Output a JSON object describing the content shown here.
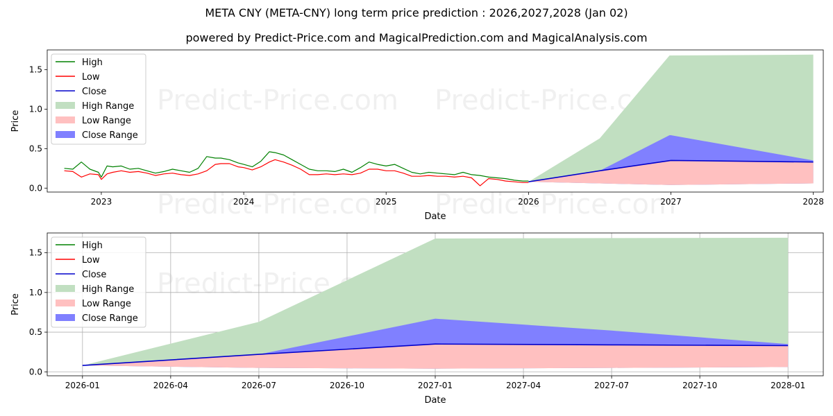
{
  "header": {
    "title": "META CNY (META-CNY) long term price prediction : 2026,2027,2028 (Jan 02)",
    "subtitle": "powered by Predict-Price.com and MagicalPrediction.com and MagicalAnalysis.com"
  },
  "watermark": "Predict-Price.com",
  "colors": {
    "high": "#008000",
    "low": "#ff0000",
    "close": "#0000cc",
    "high_range": "#c1dfc1",
    "low_range": "#ffc0c0",
    "close_range": "#8080ff"
  },
  "chart_data": [
    {
      "type": "line",
      "id": "overview",
      "xlabel": "Date",
      "ylabel": "Price",
      "xlim": [
        2022.62,
        2028.07
      ],
      "ylim": [
        -0.05,
        1.75
      ],
      "x_ticks": [
        2023,
        2024,
        2025,
        2026,
        2027,
        2028
      ],
      "x_tick_labels": [
        "2023",
        "2024",
        "2025",
        "2026",
        "2027",
        "2028"
      ],
      "y_ticks": [
        0.0,
        0.5,
        1.0,
        1.5
      ],
      "y_tick_labels": [
        "0.0",
        "0.5",
        "1.0",
        "1.5"
      ],
      "grid": false,
      "legend_position": "top-left",
      "legend": [
        "High",
        "Low",
        "Close",
        "High Range",
        "Low Range",
        "Close Range"
      ],
      "history_x": [
        2022.74,
        2022.8,
        2022.86,
        2022.92,
        2022.98,
        2023.0,
        2023.04,
        2023.08,
        2023.14,
        2023.2,
        2023.26,
        2023.32,
        2023.38,
        2023.44,
        2023.5,
        2023.56,
        2023.62,
        2023.68,
        2023.74,
        2023.8,
        2023.84,
        2023.9,
        2023.96,
        2024.0,
        2024.06,
        2024.12,
        2024.18,
        2024.22,
        2024.28,
        2024.34,
        2024.4,
        2024.46,
        2024.52,
        2024.58,
        2024.64,
        2024.7,
        2024.76,
        2024.82,
        2024.88,
        2024.94,
        2025.0,
        2025.06,
        2025.12,
        2025.18,
        2025.24,
        2025.3,
        2025.36,
        2025.42,
        2025.48,
        2025.54,
        2025.6,
        2025.66,
        2025.72,
        2025.78,
        2025.84,
        2025.9,
        2025.96,
        2026.0
      ],
      "history_high": [
        0.25,
        0.24,
        0.33,
        0.24,
        0.2,
        0.14,
        0.28,
        0.27,
        0.28,
        0.24,
        0.25,
        0.22,
        0.19,
        0.21,
        0.24,
        0.22,
        0.2,
        0.25,
        0.4,
        0.38,
        0.38,
        0.36,
        0.32,
        0.3,
        0.27,
        0.34,
        0.46,
        0.45,
        0.42,
        0.36,
        0.3,
        0.24,
        0.22,
        0.22,
        0.21,
        0.24,
        0.2,
        0.26,
        0.33,
        0.3,
        0.28,
        0.3,
        0.25,
        0.2,
        0.18,
        0.2,
        0.19,
        0.18,
        0.17,
        0.2,
        0.17,
        0.16,
        0.14,
        0.13,
        0.12,
        0.1,
        0.09,
        0.09
      ],
      "history_low": [
        0.22,
        0.21,
        0.14,
        0.18,
        0.17,
        0.11,
        0.18,
        0.2,
        0.22,
        0.2,
        0.21,
        0.19,
        0.16,
        0.18,
        0.19,
        0.17,
        0.16,
        0.18,
        0.22,
        0.3,
        0.31,
        0.31,
        0.27,
        0.26,
        0.23,
        0.27,
        0.33,
        0.36,
        0.33,
        0.29,
        0.24,
        0.17,
        0.17,
        0.18,
        0.17,
        0.18,
        0.17,
        0.19,
        0.24,
        0.24,
        0.22,
        0.22,
        0.19,
        0.15,
        0.15,
        0.16,
        0.15,
        0.15,
        0.14,
        0.15,
        0.13,
        0.03,
        0.12,
        0.11,
        0.09,
        0.08,
        0.07,
        0.07
      ],
      "history_close": [
        0.23,
        0.22,
        0.2,
        0.2,
        0.18,
        0.12,
        0.2,
        0.22,
        0.24,
        0.22,
        0.22,
        0.2,
        0.17,
        0.19,
        0.21,
        0.19,
        0.17,
        0.2,
        0.28,
        0.33,
        0.34,
        0.33,
        0.29,
        0.28,
        0.25,
        0.3,
        0.4,
        0.4,
        0.36,
        0.32,
        0.27,
        0.2,
        0.19,
        0.2,
        0.19,
        0.2,
        0.18,
        0.22,
        0.28,
        0.27,
        0.25,
        0.25,
        0.21,
        0.17,
        0.16,
        0.18,
        0.17,
        0.16,
        0.15,
        0.17,
        0.15,
        0.14,
        0.13,
        0.12,
        0.1,
        0.09,
        0.08,
        0.08
      ],
      "forecast_x": [
        2026.0,
        2026.5,
        2027.0,
        2028.0
      ],
      "forecast_x_ranges": [
        2026.0,
        2026.5,
        2026.99,
        2027.0,
        2028.0
      ],
      "high_range_upper": [
        0.08,
        0.63,
        1.68,
        1.68,
        1.69
      ],
      "low_range_lower": [
        0.08,
        0.06,
        0.04,
        0.04,
        0.06
      ],
      "close_range_upper": [
        0.08,
        0.22,
        0.67,
        0.67,
        0.35
      ],
      "close_line": [
        0.08,
        0.22,
        0.35,
        0.33
      ]
    },
    {
      "type": "line",
      "id": "forecast",
      "xlabel": "Date",
      "ylabel": "Price",
      "xlim": [
        2025.9,
        2028.1
      ],
      "ylim": [
        -0.05,
        1.75
      ],
      "x_ticks": [
        2026.0,
        2026.25,
        2026.5,
        2026.75,
        2027.0,
        2027.25,
        2027.5,
        2027.75,
        2028.0
      ],
      "x_tick_labels": [
        "2026-01",
        "2026-04",
        "2026-07",
        "2026-10",
        "2027-01",
        "2027-04",
        "2027-07",
        "2027-10",
        "2028-01"
      ],
      "y_ticks": [
        0.0,
        0.5,
        1.0,
        1.5
      ],
      "y_tick_labels": [
        "0.0",
        "0.5",
        "1.0",
        "1.5"
      ],
      "grid": true,
      "legend_position": "top-left",
      "legend": [
        "High",
        "Low",
        "Close",
        "High Range",
        "Low Range",
        "Close Range"
      ],
      "forecast_x": [
        2026.0,
        2026.5,
        2027.0,
        2027.5,
        2028.0
      ],
      "high_range_upper": [
        0.08,
        0.63,
        1.68,
        1.685,
        1.69
      ],
      "low_range_lower": [
        0.08,
        0.05,
        0.04,
        0.05,
        0.06
      ],
      "close_range_upper": [
        0.08,
        0.22,
        0.67,
        0.52,
        0.35
      ],
      "close_line": [
        0.08,
        0.22,
        0.35,
        0.34,
        0.33
      ]
    }
  ]
}
